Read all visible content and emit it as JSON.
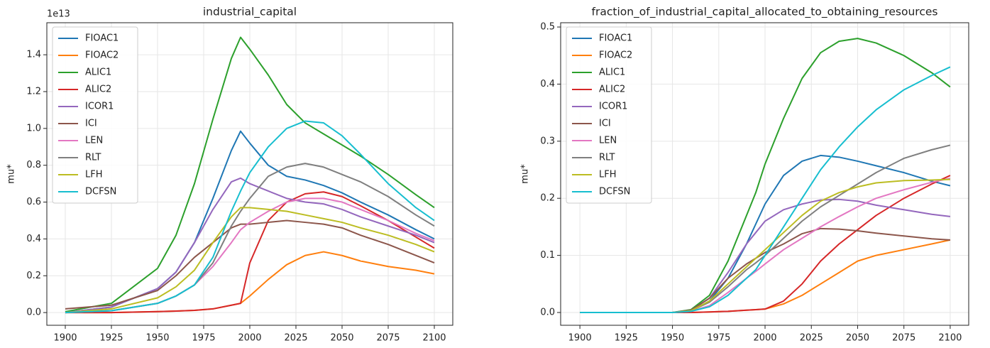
{
  "chart_data": [
    {
      "type": "line",
      "title": "industrial_capital",
      "ylabel": "mu*",
      "y_offset_label": "1e13",
      "x": [
        1900,
        1925,
        1950,
        1960,
        1970,
        1980,
        1990,
        1995,
        2000,
        2010,
        2020,
        2030,
        2040,
        2050,
        2060,
        2075,
        2090,
        2100
      ],
      "xlim": [
        1890,
        2110
      ],
      "ylim": [
        -0.069,
        1.574
      ],
      "xticks": [
        1900,
        1925,
        1950,
        1975,
        2000,
        2025,
        2050,
        2075,
        2100
      ],
      "yticks": [
        {
          "value": 0,
          "label": "0.0"
        },
        0.2,
        0.4,
        0.6,
        0.8,
        {
          "value": 1,
          "label": "1.0"
        },
        1.2,
        1.4
      ],
      "grid": true,
      "legend": "upper left",
      "series": [
        {
          "name": "FIOAC1",
          "color": "#1f77b4",
          "values": [
            0,
            0.03,
            0.13,
            0.22,
            0.38,
            0.62,
            0.88,
            0.985,
            0.92,
            0.8,
            0.74,
            0.72,
            0.69,
            0.65,
            0.6,
            0.53,
            0.45,
            0.4
          ]
        },
        {
          "name": "FIOAC2",
          "color": "#ff7f0e",
          "values": [
            0,
            0,
            0.005,
            0.008,
            0.012,
            0.02,
            0.04,
            0.05,
            0.09,
            0.18,
            0.26,
            0.31,
            0.33,
            0.31,
            0.28,
            0.25,
            0.23,
            0.21
          ]
        },
        {
          "name": "ALIC1",
          "color": "#2ca02c",
          "values": [
            0.005,
            0.05,
            0.24,
            0.42,
            0.7,
            1.05,
            1.38,
            1.495,
            1.43,
            1.29,
            1.13,
            1.03,
            0.97,
            0.91,
            0.85,
            0.75,
            0.64,
            0.57
          ]
        },
        {
          "name": "ALIC2",
          "color": "#d62728",
          "values": [
            0,
            0,
            0.005,
            0.008,
            0.012,
            0.02,
            0.04,
            0.05,
            0.27,
            0.5,
            0.6,
            0.645,
            0.655,
            0.63,
            0.58,
            0.5,
            0.41,
            0.35
          ]
        },
        {
          "name": "ICOR1",
          "color": "#9467bd",
          "values": [
            0,
            0.03,
            0.13,
            0.22,
            0.38,
            0.56,
            0.71,
            0.73,
            0.7,
            0.66,
            0.62,
            0.6,
            0.59,
            0.56,
            0.52,
            0.47,
            0.42,
            0.38
          ]
        },
        {
          "name": "ICI",
          "color": "#8c564b",
          "values": [
            0.02,
            0.04,
            0.12,
            0.2,
            0.3,
            0.38,
            0.46,
            0.48,
            0.48,
            0.49,
            0.5,
            0.49,
            0.48,
            0.46,
            0.42,
            0.37,
            0.31,
            0.27
          ]
        },
        {
          "name": "LEN",
          "color": "#e377c2",
          "values": [
            0,
            0.01,
            0.05,
            0.09,
            0.15,
            0.25,
            0.38,
            0.45,
            0.49,
            0.55,
            0.6,
            0.62,
            0.62,
            0.6,
            0.56,
            0.5,
            0.43,
            0.39
          ]
        },
        {
          "name": "RLT",
          "color": "#7f7f7f",
          "values": [
            0,
            0.01,
            0.05,
            0.09,
            0.15,
            0.27,
            0.47,
            0.55,
            0.62,
            0.74,
            0.79,
            0.81,
            0.79,
            0.75,
            0.71,
            0.63,
            0.53,
            0.47
          ]
        },
        {
          "name": "LFH",
          "color": "#bcbd22",
          "values": [
            0,
            0.02,
            0.08,
            0.14,
            0.23,
            0.38,
            0.52,
            0.57,
            0.57,
            0.56,
            0.55,
            0.53,
            0.51,
            0.49,
            0.46,
            0.42,
            0.37,
            0.33
          ]
        },
        {
          "name": "DCFSN",
          "color": "#17becf",
          "values": [
            0,
            0.01,
            0.05,
            0.09,
            0.15,
            0.3,
            0.55,
            0.66,
            0.76,
            0.9,
            1.0,
            1.04,
            1.03,
            0.96,
            0.86,
            0.7,
            0.57,
            0.5
          ]
        }
      ]
    },
    {
      "type": "line",
      "title": "fraction_of_industrial_capital_allocated_to_obtaining_resources",
      "ylabel": "mu*",
      "x": [
        1900,
        1925,
        1950,
        1960,
        1970,
        1980,
        1990,
        1995,
        2000,
        2010,
        2020,
        2030,
        2040,
        2050,
        2060,
        2075,
        2090,
        2100
      ],
      "xlim": [
        1889.6,
        2110
      ],
      "ylim": [
        -0.0224,
        0.5075
      ],
      "xticks": [
        1900,
        1925,
        1950,
        1975,
        2000,
        2025,
        2050,
        2075,
        2100
      ],
      "yticks": [
        {
          "value": 0,
          "label": "0.0"
        },
        0.1,
        0.2,
        0.3,
        0.4,
        0.5
      ],
      "grid": true,
      "legend": "upper left",
      "series": [
        {
          "name": "FIOAC1",
          "color": "#1f77b4",
          "values": [
            0,
            0,
            0,
            0.003,
            0.02,
            0.06,
            0.12,
            0.155,
            0.19,
            0.24,
            0.265,
            0.275,
            0.272,
            0.265,
            0.257,
            0.245,
            0.23,
            0.222
          ]
        },
        {
          "name": "FIOAC2",
          "color": "#ff7f0e",
          "values": [
            0,
            0,
            0,
            0,
            0.001,
            0.002,
            0.004,
            0.005,
            0.006,
            0.015,
            0.03,
            0.05,
            0.07,
            0.09,
            0.1,
            0.11,
            0.12,
            0.127
          ]
        },
        {
          "name": "ALIC1",
          "color": "#2ca02c",
          "values": [
            0,
            0,
            0,
            0.005,
            0.03,
            0.09,
            0.17,
            0.21,
            0.26,
            0.34,
            0.41,
            0.455,
            0.475,
            0.48,
            0.472,
            0.45,
            0.42,
            0.395
          ]
        },
        {
          "name": "ALIC2",
          "color": "#d62728",
          "values": [
            0,
            0,
            0,
            0,
            0.001,
            0.002,
            0.004,
            0.005,
            0.006,
            0.02,
            0.05,
            0.09,
            0.12,
            0.145,
            0.17,
            0.2,
            0.225,
            0.24
          ]
        },
        {
          "name": "ICOR1",
          "color": "#9467bd",
          "values": [
            0,
            0,
            0,
            0.004,
            0.025,
            0.07,
            0.12,
            0.14,
            0.16,
            0.18,
            0.19,
            0.197,
            0.198,
            0.195,
            0.188,
            0.18,
            0.172,
            0.168
          ]
        },
        {
          "name": "ICI",
          "color": "#8c564b",
          "values": [
            0,
            0,
            0,
            0.004,
            0.025,
            0.06,
            0.085,
            0.095,
            0.105,
            0.12,
            0.138,
            0.147,
            0.146,
            0.143,
            0.139,
            0.134,
            0.129,
            0.127
          ]
        },
        {
          "name": "LEN",
          "color": "#e377c2",
          "values": [
            0,
            0,
            0,
            0.002,
            0.012,
            0.035,
            0.06,
            0.072,
            0.085,
            0.11,
            0.13,
            0.15,
            0.168,
            0.185,
            0.2,
            0.215,
            0.228,
            0.235
          ]
        },
        {
          "name": "RLT",
          "color": "#7f7f7f",
          "values": [
            0,
            0,
            0,
            0.003,
            0.018,
            0.045,
            0.075,
            0.087,
            0.1,
            0.13,
            0.16,
            0.185,
            0.205,
            0.225,
            0.245,
            0.27,
            0.285,
            0.293
          ]
        },
        {
          "name": "LFH",
          "color": "#bcbd22",
          "values": [
            0,
            0,
            0,
            0.003,
            0.02,
            0.05,
            0.08,
            0.095,
            0.11,
            0.14,
            0.17,
            0.195,
            0.21,
            0.22,
            0.227,
            0.231,
            0.232,
            0.233
          ]
        },
        {
          "name": "DCFSN",
          "color": "#17becf",
          "values": [
            0,
            0,
            0,
            0.002,
            0.01,
            0.03,
            0.06,
            0.075,
            0.1,
            0.15,
            0.2,
            0.25,
            0.29,
            0.325,
            0.355,
            0.39,
            0.415,
            0.43
          ]
        }
      ]
    }
  ]
}
